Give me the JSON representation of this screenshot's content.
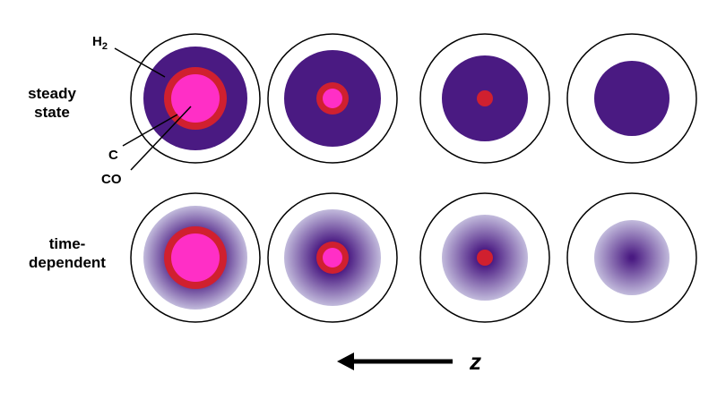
{
  "rows": [
    {
      "label_lines": [
        "steady",
        "state"
      ],
      "gradient": false,
      "panels": [
        {
          "co": true,
          "c": true
        },
        {
          "co": true,
          "c": true
        },
        {
          "co": false,
          "c": true
        },
        {
          "co": false,
          "c": false
        }
      ]
    },
    {
      "label_lines": [
        "time-",
        "dependent"
      ],
      "gradient": true,
      "panels": [
        {
          "co": true,
          "c": true
        },
        {
          "co": true,
          "c": true
        },
        {
          "co": false,
          "c": true
        },
        {
          "co": false,
          "c": false
        }
      ]
    }
  ],
  "callouts": {
    "h2": {
      "text": "H",
      "subscript": "2"
    },
    "c": {
      "text": "C"
    },
    "co": {
      "text": "CO"
    }
  },
  "axis": {
    "label": "z",
    "direction": "left"
  },
  "colors": {
    "h2_solid": "#4a1a82",
    "h2_fade": "#c2bbdc",
    "c_ring": "#d0202f",
    "co_core": "#ff2fc6",
    "outline": "#000000"
  }
}
